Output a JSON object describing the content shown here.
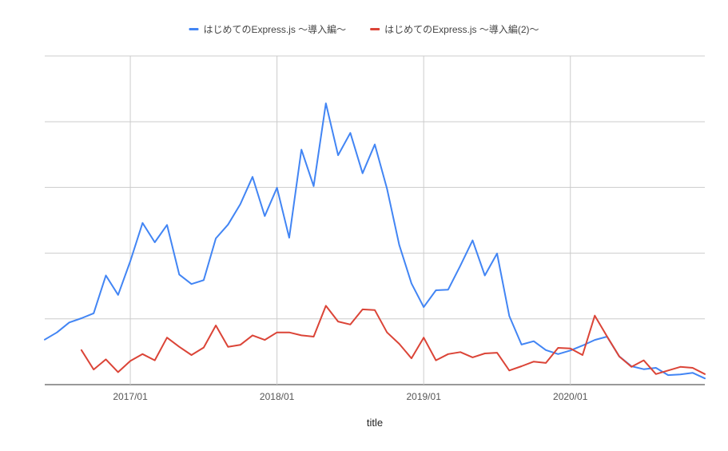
{
  "chart_data": {
    "type": "line",
    "title": "",
    "xlabel": "title",
    "ylabel": "",
    "legend_position": "top-center",
    "grid": true,
    "y_ticks_visible": false,
    "x_tick_labels": [
      "2017/01",
      "2018/01",
      "2019/01",
      "2020/01"
    ],
    "x_range": [
      "2016/06",
      "2020/12"
    ],
    "ylim": [
      0,
      100
    ],
    "x": [
      "2016/06",
      "2016/07",
      "2016/08",
      "2016/09",
      "2016/10",
      "2016/11",
      "2016/12",
      "2017/01",
      "2017/02",
      "2017/03",
      "2017/04",
      "2017/05",
      "2017/06",
      "2017/07",
      "2017/08",
      "2017/09",
      "2017/10",
      "2017/11",
      "2017/12",
      "2018/01",
      "2018/02",
      "2018/03",
      "2018/04",
      "2018/05",
      "2018/06",
      "2018/07",
      "2018/08",
      "2018/09",
      "2018/10",
      "2018/11",
      "2018/12",
      "2019/01",
      "2019/02",
      "2019/03",
      "2019/04",
      "2019/05",
      "2019/06",
      "2019/07",
      "2019/08",
      "2019/09",
      "2019/10",
      "2019/11",
      "2019/12",
      "2020/01",
      "2020/02",
      "2020/03",
      "2020/04",
      "2020/05",
      "2020/06",
      "2020/07",
      "2020/08",
      "2020/09",
      "2020/10",
      "2020/11",
      "2020/12"
    ],
    "series": [
      {
        "name": "はじめてのExpress.js 〜導入編〜",
        "color": "#4285f4",
        "values": [
          13.7,
          15.9,
          18.9,
          20.2,
          21.7,
          33.2,
          27.3,
          37.6,
          49.2,
          43.3,
          48.6,
          33.5,
          30.6,
          31.8,
          44.5,
          48.7,
          54.9,
          63.2,
          51.3,
          59.9,
          44.7,
          71.5,
          60.4,
          85.6,
          69.8,
          76.6,
          64.3,
          73.1,
          59.6,
          42.5,
          30.8,
          23.6,
          28.7,
          28.9,
          36.2,
          43.9,
          33.2,
          39.9,
          20.9,
          12.2,
          13.2,
          10.5,
          9.3,
          10.4,
          11.9,
          13.6,
          14.6,
          8.6,
          5.6,
          4.7,
          5.1,
          2.9,
          3.1,
          3.6,
          1.9
        ]
      },
      {
        "name": "はじめてのExpress.js 〜導入編(2)〜",
        "color": "#db4437",
        "values": [
          null,
          null,
          null,
          10.5,
          4.6,
          7.7,
          3.8,
          7.2,
          9.3,
          7.4,
          14.3,
          11.5,
          9.0,
          11.3,
          18.0,
          11.5,
          12.1,
          15.0,
          13.6,
          15.9,
          15.9,
          15.0,
          14.6,
          24.0,
          19.2,
          18.3,
          22.9,
          22.7,
          15.9,
          12.4,
          8.0,
          14.3,
          7.4,
          9.3,
          9.9,
          8.3,
          9.5,
          9.7,
          4.3,
          5.6,
          7.0,
          6.6,
          11.2,
          11.0,
          9.0,
          21.0,
          14.7,
          8.6,
          5.4,
          7.4,
          3.2,
          4.3,
          5.4,
          5.1,
          3.2
        ]
      }
    ]
  }
}
